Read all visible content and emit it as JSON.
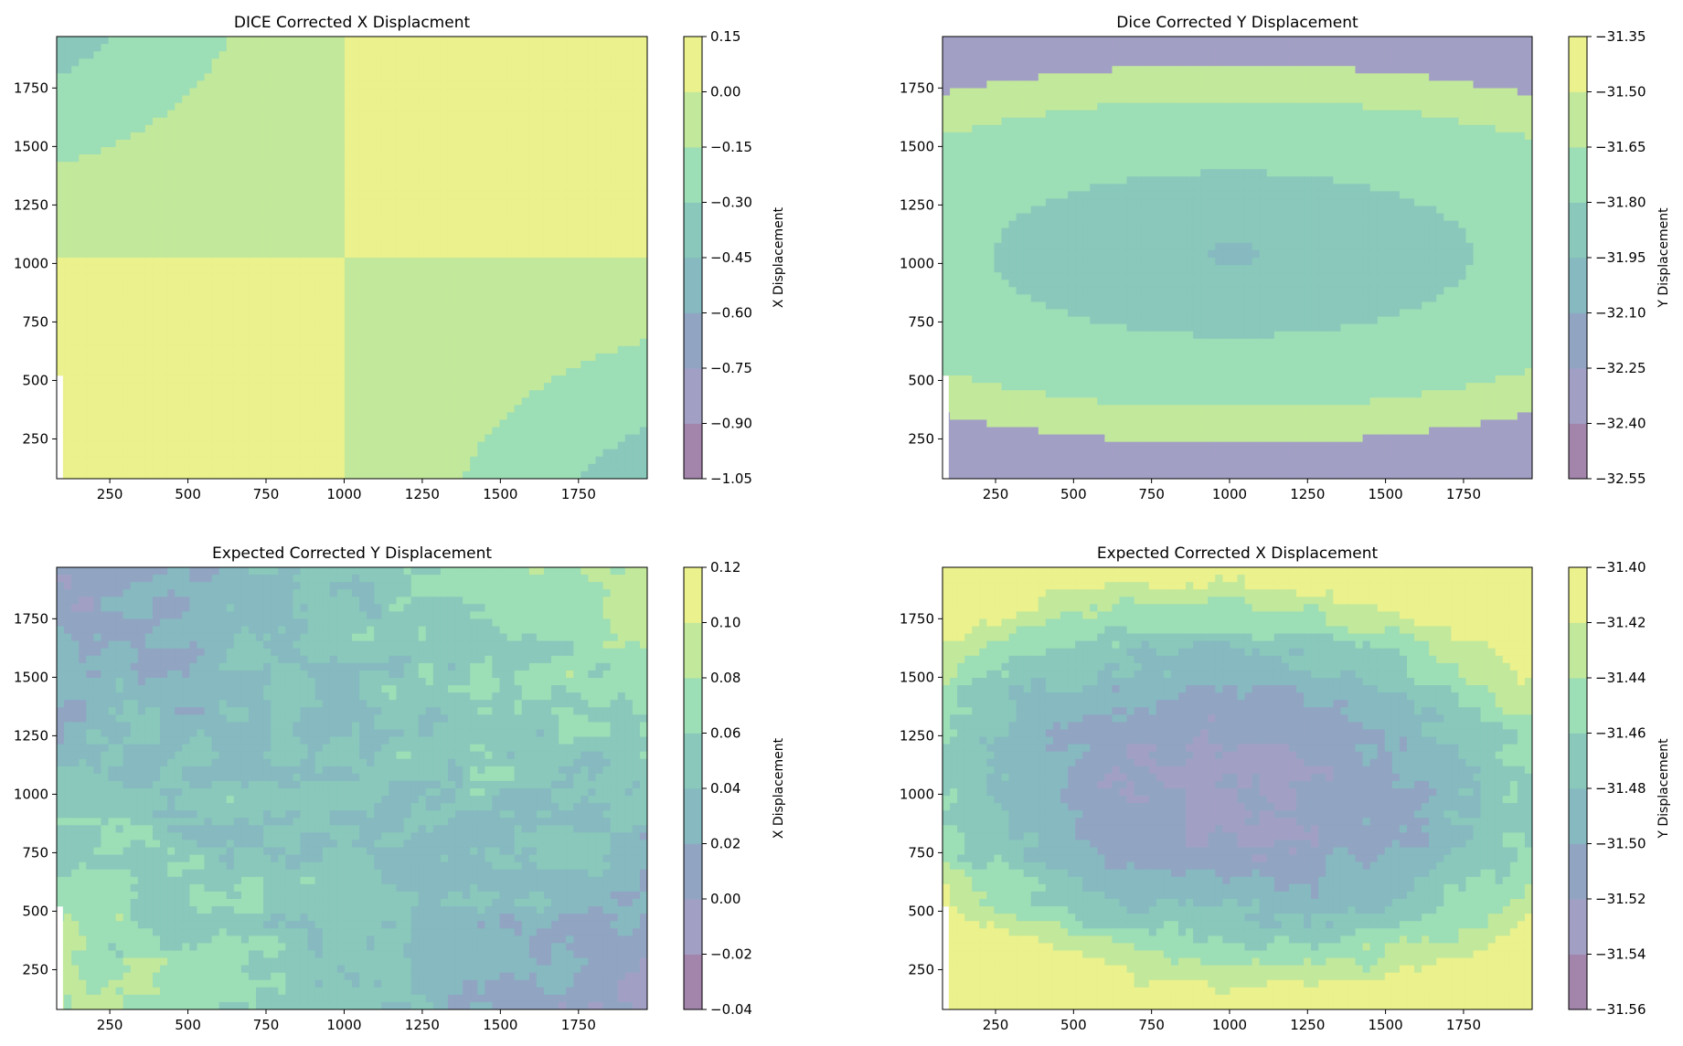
{
  "chart_data": [
    {
      "type": "contour",
      "title": "DICE Corrected X Displacment",
      "xlabel": "",
      "ylabel": "",
      "colorbar_label": "X Displacement",
      "x_ticks": [
        250,
        500,
        750,
        1000,
        1250,
        1500,
        1750
      ],
      "y_ticks": [
        250,
        500,
        750,
        1000,
        1250,
        1500,
        1750
      ],
      "xlim": [
        80,
        1970
      ],
      "ylim": [
        80,
        1970
      ],
      "levels": [
        -1.05,
        -0.9,
        -0.75,
        -0.6,
        -0.45,
        -0.3,
        -0.15,
        0.0,
        0.15
      ],
      "level_labels": [
        "−1.05",
        "−0.90",
        "−0.75",
        "−0.60",
        "−0.45",
        "−0.30",
        "−0.15",
        "0.00",
        "0.15"
      ],
      "pattern": "saddle",
      "colormap": "viridis",
      "alpha": 0.5
    },
    {
      "type": "contour",
      "title": "Dice Corrected Y Displacement",
      "xlabel": "",
      "ylabel": "",
      "colorbar_label": "Y Displacement",
      "x_ticks": [
        250,
        500,
        750,
        1000,
        1250,
        1500,
        1750
      ],
      "y_ticks": [
        250,
        500,
        750,
        1000,
        1250,
        1500,
        1750
      ],
      "xlim": [
        80,
        1970
      ],
      "ylim": [
        80,
        1970
      ],
      "levels": [
        -32.55,
        -32.4,
        -32.25,
        -32.1,
        -31.95,
        -31.8,
        -31.65,
        -31.5,
        -31.35
      ],
      "level_labels": [
        "−32.55",
        "−32.40",
        "−32.25",
        "−32.10",
        "−31.95",
        "−31.80",
        "−31.65",
        "−31.50",
        "−31.35"
      ],
      "pattern": "bowl",
      "colormap": "viridis",
      "alpha": 0.5
    },
    {
      "type": "contour",
      "title": "Expected Corrected Y Displacement",
      "xlabel": "",
      "ylabel": "",
      "colorbar_label": "X Displacement",
      "x_ticks": [
        250,
        500,
        750,
        1000,
        1250,
        1500,
        1750
      ],
      "y_ticks": [
        250,
        500,
        750,
        1000,
        1250,
        1500,
        1750
      ],
      "xlim": [
        80,
        1970
      ],
      "ylim": [
        80,
        1970
      ],
      "levels": [
        -0.04,
        -0.02,
        0.0,
        0.02,
        0.04,
        0.06,
        0.08,
        0.1,
        0.12
      ],
      "level_labels": [
        "−0.04",
        "−0.02",
        "0.00",
        "0.02",
        "0.04",
        "0.06",
        "0.08",
        "0.10",
        "0.12"
      ],
      "pattern": "noisy-gradient",
      "colormap": "viridis",
      "alpha": 0.5
    },
    {
      "type": "contour",
      "title": "Expected Corrected X Displacement",
      "xlabel": "",
      "ylabel": "",
      "colorbar_label": "Y Displacement",
      "x_ticks": [
        250,
        500,
        750,
        1000,
        1250,
        1500,
        1750
      ],
      "y_ticks": [
        250,
        500,
        750,
        1000,
        1250,
        1500,
        1750
      ],
      "xlim": [
        80,
        1970
      ],
      "ylim": [
        80,
        1970
      ],
      "levels": [
        -31.56,
        -31.54,
        -31.52,
        -31.5,
        -31.48,
        -31.46,
        -31.44,
        -31.42,
        -31.4
      ],
      "level_labels": [
        "−31.56",
        "−31.54",
        "−31.52",
        "−31.50",
        "−31.48",
        "−31.46",
        "−31.44",
        "−31.42",
        "−31.40"
      ],
      "pattern": "noisy-bowl",
      "colormap": "viridis",
      "alpha": 0.5
    }
  ]
}
